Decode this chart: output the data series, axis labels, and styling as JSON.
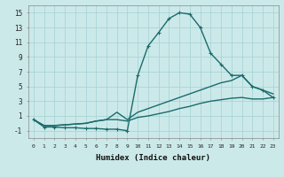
{
  "xlabel": "Humidex (Indice chaleur)",
  "bg_color": "#cce9ea",
  "grid_color": "#aad4d6",
  "line_color": "#1a6b6b",
  "xlim": [
    -0.5,
    23.5
  ],
  "ylim": [
    -2,
    16
  ],
  "xticks": [
    0,
    1,
    2,
    3,
    4,
    5,
    6,
    7,
    8,
    9,
    10,
    11,
    12,
    13,
    14,
    15,
    16,
    17,
    18,
    19,
    20,
    21,
    22,
    23
  ],
  "yticks": [
    -1,
    1,
    3,
    5,
    7,
    9,
    11,
    13,
    15
  ],
  "series": [
    {
      "x": [
        0,
        1,
        2,
        3,
        4,
        5,
        6,
        7,
        8,
        9,
        10,
        11,
        12,
        13,
        14,
        15,
        16,
        17,
        18,
        19,
        20,
        21,
        22,
        23
      ],
      "y": [
        0.5,
        -0.5,
        -0.5,
        -0.6,
        -0.6,
        -0.7,
        -0.7,
        -0.8,
        -0.8,
        -1.0,
        6.5,
        10.5,
        12.3,
        14.2,
        15.0,
        14.8,
        13.0,
        9.5,
        8.0,
        6.5,
        6.5,
        5.0,
        4.5,
        3.5
      ],
      "marker": "+",
      "lw": 1.0
    },
    {
      "x": [
        0,
        1,
        2,
        3,
        4,
        5,
        6,
        7,
        8,
        9,
        10,
        11,
        12,
        13,
        14,
        15,
        16,
        17,
        18,
        19,
        20,
        21,
        22,
        23
      ],
      "y": [
        0.5,
        -0.3,
        -0.3,
        -0.2,
        -0.1,
        0.0,
        0.3,
        0.5,
        1.5,
        0.5,
        1.5,
        2.0,
        2.5,
        3.0,
        3.5,
        4.0,
        4.5,
        5.0,
        5.5,
        5.8,
        6.5,
        5.0,
        4.5,
        4.0
      ],
      "marker": null,
      "lw": 1.0
    },
    {
      "x": [
        0,
        1,
        2,
        3,
        4,
        5,
        6,
        7,
        8,
        9,
        10,
        11,
        12,
        13,
        14,
        15,
        16,
        17,
        18,
        19,
        20,
        21,
        22,
        23
      ],
      "y": [
        0.5,
        -0.3,
        -0.3,
        -0.2,
        -0.1,
        0.0,
        0.3,
        0.5,
        0.5,
        0.3,
        0.8,
        1.0,
        1.3,
        1.6,
        2.0,
        2.3,
        2.7,
        3.0,
        3.2,
        3.4,
        3.5,
        3.3,
        3.3,
        3.5
      ],
      "marker": null,
      "lw": 1.0
    }
  ]
}
